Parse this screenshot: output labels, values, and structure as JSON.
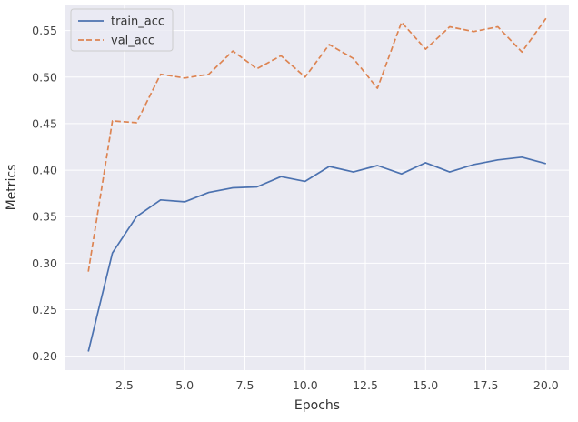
{
  "chart_data": {
    "type": "line",
    "title": "",
    "xlabel": "Epochs",
    "ylabel": "Metrics",
    "xlim": [
      0.05,
      20.95
    ],
    "ylim": [
      0.185,
      0.578
    ],
    "xticks": [
      2.5,
      5.0,
      7.5,
      10.0,
      12.5,
      15.0,
      17.5,
      20.0
    ],
    "xtick_labels": [
      "2.5",
      "5.0",
      "7.5",
      "10.0",
      "12.5",
      "15.0",
      "17.5",
      "20.0"
    ],
    "yticks": [
      0.2,
      0.25,
      0.3,
      0.35,
      0.4,
      0.45,
      0.5,
      0.55
    ],
    "ytick_labels": [
      "0.20",
      "0.25",
      "0.30",
      "0.35",
      "0.40",
      "0.45",
      "0.50",
      "0.55"
    ],
    "grid": true,
    "legend_position": "top-left",
    "x": [
      1,
      2,
      3,
      4,
      5,
      6,
      7,
      8,
      9,
      10,
      11,
      12,
      13,
      14,
      15,
      16,
      17,
      18,
      19,
      20
    ],
    "series": [
      {
        "name": "train_acc",
        "style": "solid",
        "color": "#4C72B0",
        "values": [
          0.205,
          0.311,
          0.35,
          0.368,
          0.366,
          0.376,
          0.381,
          0.382,
          0.393,
          0.388,
          0.404,
          0.398,
          0.405,
          0.396,
          0.408,
          0.398,
          0.406,
          0.411,
          0.414,
          0.407
        ]
      },
      {
        "name": "val_acc",
        "style": "dashed",
        "color": "#DD8452",
        "values": [
          0.291,
          0.453,
          0.451,
          0.503,
          0.499,
          0.503,
          0.528,
          0.509,
          0.523,
          0.5,
          0.535,
          0.52,
          0.488,
          0.559,
          0.53,
          0.554,
          0.549,
          0.554,
          0.527,
          0.563
        ]
      }
    ]
  },
  "style": {
    "plot_background": "#EAEAF2",
    "grid_color": "#FFFFFF"
  }
}
